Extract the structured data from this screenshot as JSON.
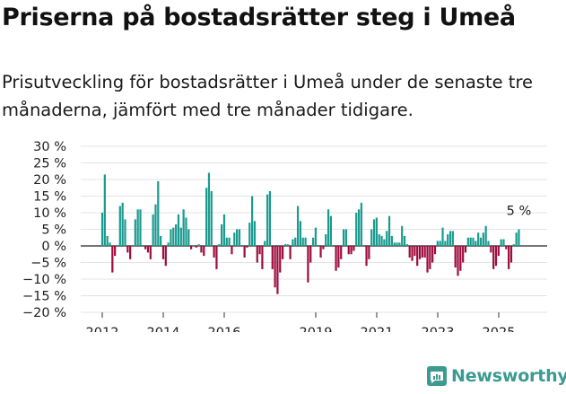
{
  "header": {
    "title": "Priserna på bostadsrätter steg i Umeå",
    "subtitle": "Prisutveckling för bostadsrätter i Umeå under de senaste tre månaderna, jämfört med tre månader tidigare."
  },
  "brand": {
    "name": "Newsworthy",
    "color": "#3d9a91"
  },
  "chart_data": {
    "type": "bar",
    "ylim": [
      -20,
      30
    ],
    "yticks": [
      -20,
      -15,
      -10,
      -5,
      0,
      5,
      10,
      15,
      20,
      25,
      30
    ],
    "ytick_labels": [
      "−20 %",
      "−15 %",
      "−10 %",
      "−5 %",
      "0 %",
      "5 %",
      "10 %",
      "15 %",
      "20 %",
      "25 %",
      "30 %"
    ],
    "x_start": 2012.0,
    "x_step": 0.0833,
    "xlim": [
      2011.0,
      2026.5
    ],
    "xticks": [
      2012,
      2014,
      2016,
      2019,
      2021,
      2023,
      2025
    ],
    "positive_color": "#1a9b8f",
    "negative_color": "#9e0d3f",
    "annotation": {
      "label": "5 %",
      "value": 5
    },
    "values": [
      10,
      21.5,
      3,
      1,
      -8,
      -3,
      0,
      12,
      13,
      8,
      -2,
      -4,
      0,
      8,
      11,
      11,
      0,
      -1,
      -2,
      -4,
      9.5,
      12.5,
      19.5,
      3,
      -4,
      -6,
      1,
      5,
      5.5,
      6.5,
      9.5,
      5.5,
      11,
      8.5,
      5,
      -1,
      0,
      -0.5,
      0.5,
      -2,
      -3,
      17.5,
      22,
      16.5,
      -3.5,
      -7,
      0.5,
      6.5,
      9.5,
      2.5,
      2.5,
      -2.5,
      4,
      5,
      5,
      0,
      -3.5,
      -0.5,
      7,
      15,
      7.5,
      -5,
      -2.5,
      -7,
      1.5,
      15.5,
      16.5,
      -7,
      -12.5,
      -14.5,
      -8,
      -4,
      0.5,
      0.5,
      -4,
      2,
      2.5,
      12,
      7.5,
      2.5,
      2.5,
      -11,
      -5,
      2.5,
      5.5,
      0,
      -3.5,
      -1,
      3.5,
      11,
      9,
      0,
      -7.5,
      -6.5,
      -4,
      5,
      5,
      -2.5,
      -2.5,
      -1.5,
      10,
      11,
      13,
      0,
      -6,
      -4,
      5,
      8,
      8.5,
      3.5,
      3,
      2,
      4.5,
      9,
      3,
      1,
      1,
      1,
      6,
      3,
      0.5,
      -3.5,
      -4.5,
      -3,
      -6,
      -4,
      -3.5,
      -3.5,
      -8,
      -7,
      -5,
      -2.5,
      1.5,
      1.5,
      5.5,
      1.5,
      3.5,
      4.5,
      4.5,
      -6.5,
      -9,
      -7.5,
      -5,
      -2,
      2.5,
      2.5,
      2.5,
      1.5,
      4,
      2.5,
      4,
      6,
      1.5,
      -2,
      -7,
      -6,
      -3,
      2,
      2,
      -1,
      -7,
      -5,
      0.5,
      4,
      5
    ]
  }
}
